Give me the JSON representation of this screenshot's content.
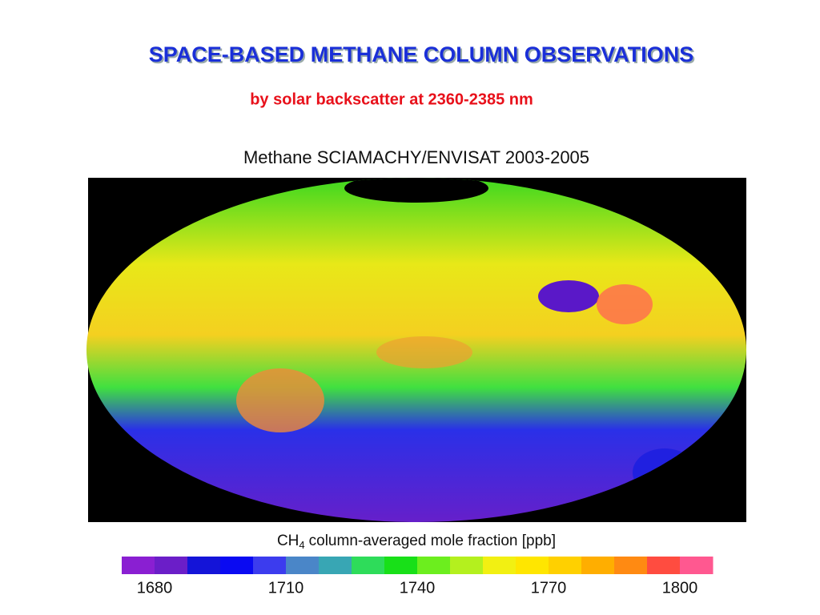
{
  "header": {
    "title": "SPACE-BASED METHANE COLUMN OBSERVATIONS",
    "subtitle": "by solar backscatter at 2360-2385 nm"
  },
  "map": {
    "title": "Methane SCIAMACHY/ENVISAT 2003-2005",
    "colorbar": {
      "label_main": "CH",
      "label_sub": "4",
      "label_rest": "column-averaged mole fraction [ppb]",
      "lim": [
        1672.5,
        1807.5
      ],
      "ticks": [
        1680,
        1710,
        1740,
        1770,
        1800
      ],
      "colors": [
        "#8a1fd2",
        "#6b1ec8",
        "#1414d8",
        "#0a0af2",
        "#3c3cee",
        "#4a86c8",
        "#38a6b4",
        "#2edc5a",
        "#18e018",
        "#6cee1e",
        "#b4f01e",
        "#f2f012",
        "#ffe600",
        "#ffd000",
        "#ffae00",
        "#ff8a12",
        "#ff4c40",
        "#ff5890"
      ]
    }
  }
}
